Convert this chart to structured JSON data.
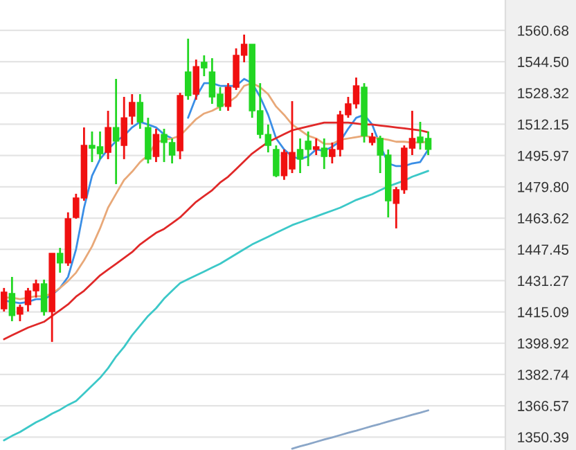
{
  "chart_data": {
    "type": "candlestick",
    "categories": [
      null,
      null,
      null,
      null,
      null,
      null,
      null,
      null,
      null,
      null,
      null,
      null,
      null,
      null,
      null,
      null,
      null,
      null,
      null,
      null,
      null,
      null,
      null,
      null,
      null,
      null,
      null,
      null,
      null,
      null,
      null,
      null,
      null,
      null,
      null,
      null,
      null,
      null,
      null,
      null,
      null,
      null,
      null,
      null,
      null,
      null,
      null,
      null,
      null,
      null,
      null,
      null,
      null,
      null
    ],
    "ohlc": [
      [
        1416.7,
        1427.5,
        1415.3,
        1425.3
      ],
      [
        1424.6,
        1433.2,
        1410.3,
        1413.2
      ],
      [
        1413.9,
        1418.9,
        1410.3,
        1417.5
      ],
      [
        1418.9,
        1427.5,
        1415.3,
        1426.0
      ],
      [
        1426.0,
        1431.8,
        1422.5,
        1429.6
      ],
      [
        1429.6,
        1431.8,
        1413.2,
        1415.3
      ],
      [
        1415.3,
        1445.4,
        1399.6,
        1445.4
      ],
      [
        1445.4,
        1448.2,
        1435.4,
        1440.4
      ],
      [
        1440.4,
        1466.6,
        1438.9,
        1463.3
      ],
      [
        1464.0,
        1476.2,
        1463.3,
        1474.0
      ],
      [
        1474.0,
        1510.5,
        1472.6,
        1501.2
      ],
      [
        1501.2,
        1508.4,
        1492.6,
        1499.8
      ],
      [
        1500.5,
        1508.4,
        1494.1,
        1496.9
      ],
      [
        1497.6,
        1519.1,
        1494.1,
        1510.5
      ],
      [
        1510.5,
        1535.6,
        1481.2,
        1503.4
      ],
      [
        1501.2,
        1526.3,
        1494.1,
        1515.5
      ],
      [
        1516.3,
        1527.7,
        1512.0,
        1523.4
      ],
      [
        1523.4,
        1527.7,
        1509.8,
        1513.4
      ],
      [
        1510.5,
        1515.5,
        1491.9,
        1494.1
      ],
      [
        1495.5,
        1509.8,
        1492.6,
        1506.9
      ],
      [
        1506.9,
        1509.8,
        1492.6,
        1502.7
      ],
      [
        1502.7,
        1504.8,
        1491.9,
        1496.2
      ],
      [
        1498.4,
        1528.4,
        1494.1,
        1527.0
      ],
      [
        1539.2,
        1556.4,
        1524.8,
        1527.0
      ],
      [
        1527.7,
        1545.6,
        1524.8,
        1542.0
      ],
      [
        1544.2,
        1547.8,
        1537.0,
        1541.3
      ],
      [
        1539.2,
        1546.3,
        1522.7,
        1526.3
      ],
      [
        1527.7,
        1531.3,
        1519.1,
        1521.3
      ],
      [
        1521.3,
        1533.4,
        1519.1,
        1531.3
      ],
      [
        1531.3,
        1551.4,
        1529.9,
        1547.8
      ],
      [
        1547.8,
        1558.5,
        1544.2,
        1553.5
      ],
      [
        1553.5,
        1553.5,
        1515.5,
        1519.1
      ],
      [
        1519.1,
        1533.4,
        1504.8,
        1506.9
      ],
      [
        1506.9,
        1512.0,
        1497.6,
        1501.2
      ],
      [
        1499.1,
        1501.2,
        1484.8,
        1485.5
      ],
      [
        1485.5,
        1499.1,
        1483.4,
        1497.6
      ],
      [
        1489.0,
        1524.1,
        1486.9,
        1497.6
      ],
      [
        1499.1,
        1504.8,
        1486.9,
        1494.1
      ],
      [
        1503.4,
        1508.4,
        1490.5,
        1499.1
      ],
      [
        1499.1,
        1504.8,
        1496.2,
        1500.5
      ],
      [
        1499.8,
        1504.8,
        1489.0,
        1495.5
      ],
      [
        1495.5,
        1502.7,
        1491.9,
        1499.1
      ],
      [
        1499.1,
        1519.1,
        1495.5,
        1517.0
      ],
      [
        1517.0,
        1526.3,
        1515.5,
        1522.7
      ],
      [
        1522.7,
        1536.3,
        1520.3,
        1532.0
      ],
      [
        1531.3,
        1533.4,
        1502.7,
        1506.2
      ],
      [
        1502.7,
        1507.7,
        1501.2,
        1505.5
      ],
      [
        1504.8,
        1506.2,
        1486.9,
        1496.2
      ],
      [
        1496.2,
        1499.1,
        1464.0,
        1472.6
      ],
      [
        1471.2,
        1479.7,
        1458.3,
        1478.3
      ],
      [
        1478.3,
        1501.2,
        1476.2,
        1499.8
      ],
      [
        1499.8,
        1519.1,
        1496.2,
        1504.8
      ],
      [
        1505.5,
        1513.4,
        1499.1,
        1502.7
      ],
      [
        1504.8,
        1508.4,
        1496.2,
        1499.1
      ]
    ],
    "colors": [
      "#f01010",
      "#22d622",
      "#f01010",
      "#f01010",
      "#f01010",
      "#22d622",
      "#f01010",
      "#22d622",
      "#f01010",
      "#f01010",
      "#f01010",
      "#22d622",
      "#22d622",
      "#f01010",
      "#22d622",
      "#f01010",
      "#f01010",
      "#22d622",
      "#22d622",
      "#f01010",
      "#22d622",
      "#22d622",
      "#f01010",
      "#22d622",
      "#f01010",
      "#22d622",
      "#22d622",
      "#22d622",
      "#f01010",
      "#f01010",
      "#f01010",
      "#22d622",
      "#22d622",
      "#22d622",
      "#22d622",
      "#f01010",
      "#f01010",
      "#22d622",
      "#22d622",
      "#f01010",
      "#22d622",
      "#f01010",
      "#f01010",
      "#f01010",
      "#f01010",
      "#22d622",
      "#f01010",
      "#22d622",
      "#22d622",
      "#f01010",
      "#f01010",
      "#f01010",
      "#22d622",
      "#22d622"
    ],
    "series": [
      {
        "type": "line",
        "color": "#3a8ee6",
        "values": [
          1421.0,
          1420.3,
          1419.6,
          1420.3,
          1421.7,
          1421.7,
          1423.9,
          1427.5,
          1433.2,
          1447.5,
          1469.0,
          1485.5,
          1494.1,
          1499.1,
          1503.4,
          1506.2,
          1510.5,
          1513.4,
          1512.0,
          1510.5,
          1506.9,
          1504.8,
          null,
          1515.5,
          1526.3,
          1533.4,
          1533.4,
          1532.0,
          1532.0,
          1532.0,
          1535.6,
          1533.4,
          1526.3,
          1517.0,
          1504.8,
          1499.1,
          1495.5,
          1494.1,
          1495.5,
          1499.1,
          1498.4,
          1500.5,
          1503.4,
          1509.8,
          1515.5,
          1517.0,
          1512.0,
          1501.2,
          1491.9,
          1490.5,
          1490.5,
          1491.9,
          1492.6,
          1499.1
        ]
      },
      {
        "type": "line",
        "color": "#e8a878",
        "values": [
          1422.5,
          1422.5,
          1421.7,
          1422.5,
          1423.2,
          1423.2,
          1424.6,
          1427.5,
          1431.1,
          1435.4,
          1441.8,
          1449.0,
          1458.3,
          1469.0,
          1476.2,
          1483.3,
          1487.6,
          1492.6,
          1496.2,
          1502.7,
          1504.1,
          1504.8,
          1506.2,
          1510.5,
          1514.8,
          1517.7,
          1519.1,
          1521.3,
          1523.4,
          1526.3,
          1532.0,
          1533.4,
          1531.3,
          1527.7,
          1521.3,
          1517.0,
          1512.0,
          1509.1,
          1506.2,
          1504.8,
          1502.0,
          1502.0,
          1504.1,
          1504.8,
          1505.5,
          1506.2,
          1505.5,
          1504.8,
          1504.1,
          1503.1,
          1503.1,
          1502.7,
          1502.7,
          1503.1
        ]
      },
      {
        "type": "line",
        "color": "#e02828",
        "values": [
          1401,
          1403,
          1405,
          1407,
          1408.5,
          1410,
          1413,
          1416,
          1419,
          1423,
          1426,
          1430,
          1434,
          1437,
          1440,
          1443,
          1446,
          1450,
          1453,
          1456,
          1458,
          1461,
          1464,
          1468,
          1472,
          1475,
          1478,
          1482,
          1485,
          1489,
          1493,
          1497,
          1500,
          1503,
          1505,
          1507,
          1509,
          1510,
          1511,
          1512,
          1513,
          1513,
          1513,
          1513,
          1512.5,
          1512,
          1512,
          1511.5,
          1511,
          1510.5,
          1510,
          1509.5,
          1509,
          1508
        ]
      },
      {
        "type": "line",
        "color": "#3cc8c8",
        "values": [
          1348.7,
          1351,
          1353,
          1355.5,
          1358,
          1360,
          1362.5,
          1364.5,
          1367,
          1369,
          1373,
          1377,
          1381,
          1386,
          1392,
          1397,
          1403,
          1408,
          1413,
          1417,
          1422,
          1426,
          1430,
          1432,
          1434,
          1436,
          1438,
          1440,
          1442.5,
          1445,
          1447.5,
          1450,
          1452,
          1454,
          1456,
          1458,
          1460,
          1461.5,
          1463,
          1464.5,
          1466,
          1467.5,
          1469,
          1471,
          1473,
          1474.5,
          1476,
          1478,
          1480,
          1481.5,
          1483,
          1485,
          1486.5,
          1488
        ]
      },
      {
        "type": "line",
        "color": "#8aa6c8",
        "values": [
          null,
          null,
          null,
          null,
          null,
          null,
          null,
          null,
          null,
          null,
          null,
          null,
          null,
          null,
          null,
          null,
          null,
          null,
          null,
          null,
          null,
          null,
          null,
          null,
          null,
          null,
          null,
          null,
          null,
          null,
          null,
          null,
          null,
          null,
          null,
          null,
          1344.4,
          1345.6,
          1346.7,
          1347.9,
          1349.1,
          1350.2,
          1351.4,
          1352.6,
          1353.7,
          1354.9,
          1356.1,
          1357.2,
          1358.4,
          1359.6,
          1360.7,
          1361.9,
          1363.0,
          1364.2
        ]
      }
    ],
    "ylim": [
      1343.7,
      1576.4
    ],
    "yticks": [
      {
        "value": 1560.68,
        "label": "1560.68"
      },
      {
        "value": 1544.5,
        "label": "1544.50"
      },
      {
        "value": 1528.32,
        "label": "1528.32"
      },
      {
        "value": 1512.15,
        "label": "1512.15"
      },
      {
        "value": 1495.97,
        "label": "1495.97"
      },
      {
        "value": 1479.8,
        "label": "1479.80"
      },
      {
        "value": 1463.62,
        "label": "1463.62"
      },
      {
        "value": 1447.45,
        "label": "1447.45"
      },
      {
        "value": 1431.27,
        "label": "1431.27"
      },
      {
        "value": 1415.09,
        "label": "1415.09"
      },
      {
        "value": 1398.92,
        "label": "1398.92"
      },
      {
        "value": 1382.74,
        "label": "1382.74"
      },
      {
        "value": 1366.57,
        "label": "1366.57"
      },
      {
        "value": 1350.39,
        "label": "1350.39"
      }
    ],
    "tick_labels": "y",
    "grid": "y"
  }
}
